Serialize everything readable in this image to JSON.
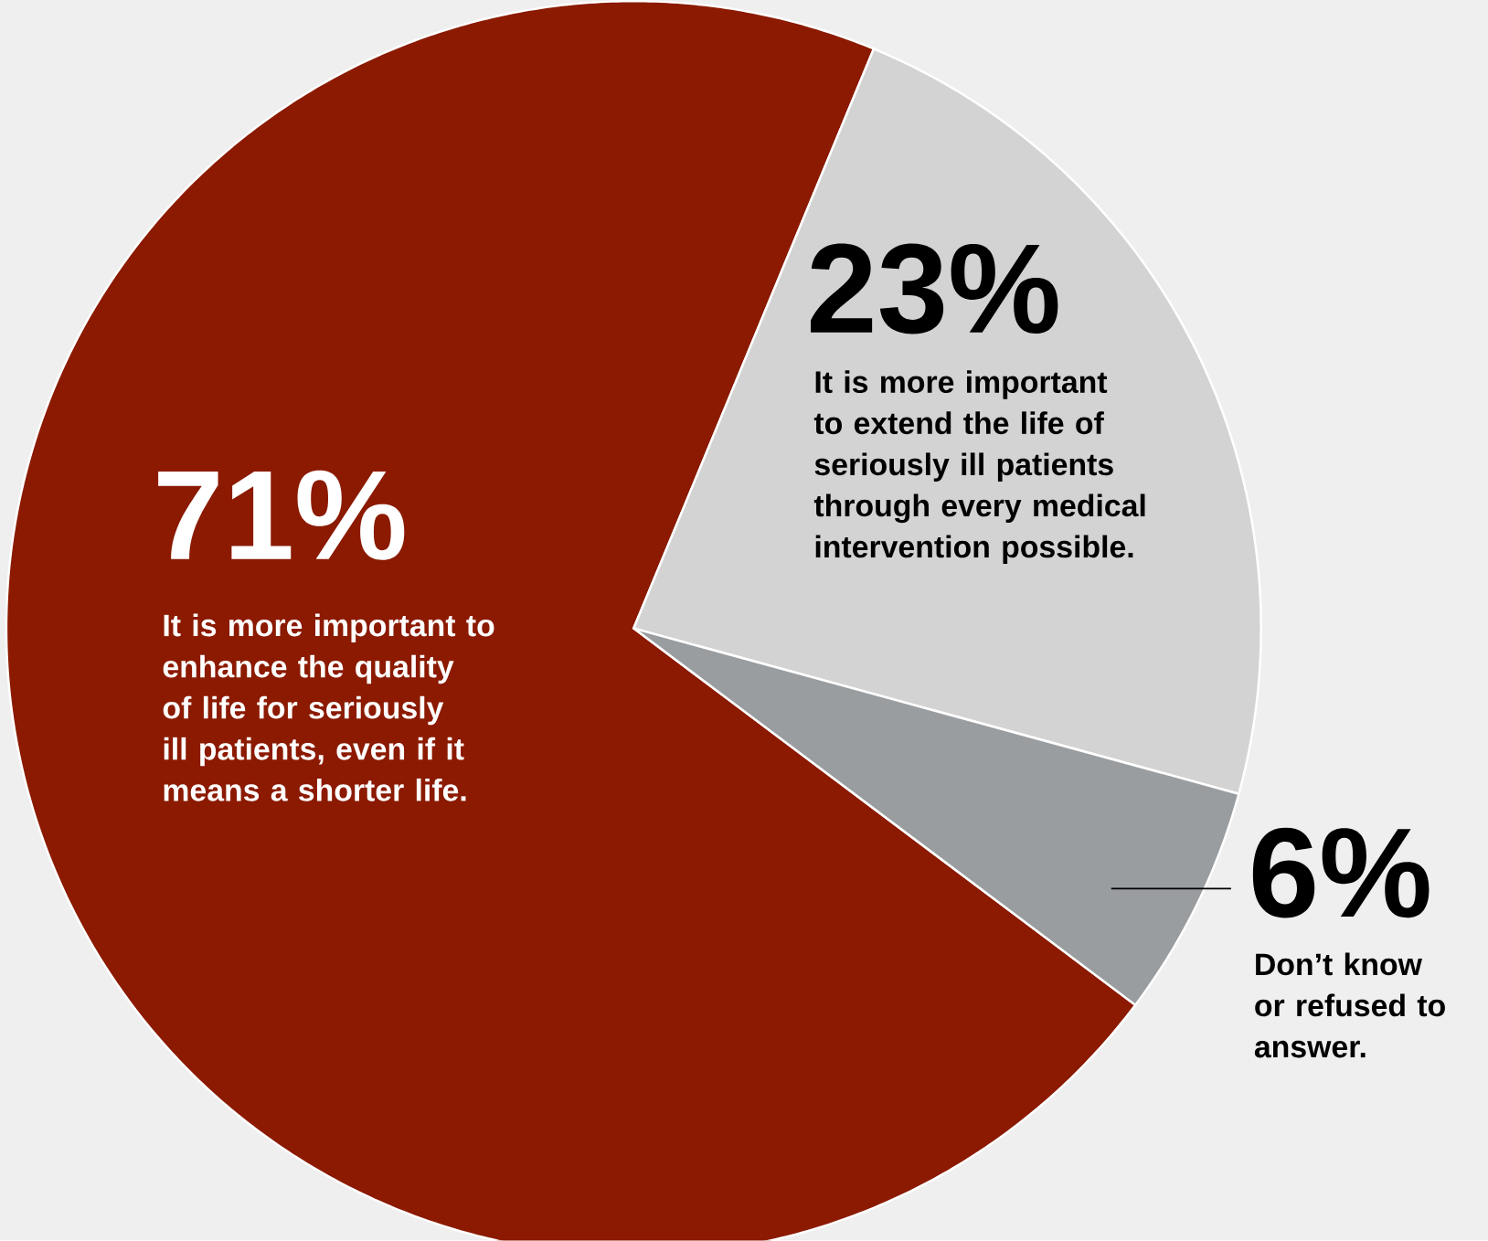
{
  "chart_data": {
    "type": "pie",
    "categories": [
      "It is more important to enhance the quality of life for seriously ill patients, even if it means a shorter life.",
      "It is more important to extend the life of seriously ill patients through every medical intervention possible.",
      "Don’t know or refused to answer."
    ],
    "values": [
      71,
      23,
      6
    ],
    "colors": [
      "#8b1a00",
      "#d3d3d3",
      "#9a9da0"
    ],
    "value_labels": [
      "71%",
      "23%",
      "6%"
    ]
  }
}
